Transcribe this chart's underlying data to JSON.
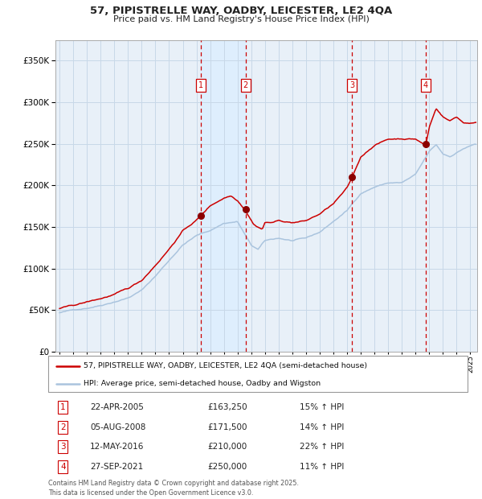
{
  "title_line1": "57, PIPISTRELLE WAY, OADBY, LEICESTER, LE2 4QA",
  "title_line2": "Price paid vs. HM Land Registry's House Price Index (HPI)",
  "legend_line1": "57, PIPISTRELLE WAY, OADBY, LEICESTER, LE2 4QA (semi-detached house)",
  "legend_line2": "HPI: Average price, semi-detached house, Oadby and Wigston",
  "footer": "Contains HM Land Registry data © Crown copyright and database right 2025.\nThis data is licensed under the Open Government Licence v3.0.",
  "transactions": [
    {
      "num": 1,
      "date": "22-APR-2005",
      "date_x": 2005.31,
      "price": 163250,
      "pct": "15%",
      "dir": "↑"
    },
    {
      "num": 2,
      "date": "05-AUG-2008",
      "date_x": 2008.59,
      "price": 171500,
      "pct": "14%",
      "dir": "↑"
    },
    {
      "num": 3,
      "date": "12-MAY-2016",
      "date_x": 2016.36,
      "price": 210000,
      "pct": "22%",
      "dir": "↑"
    },
    {
      "num": 4,
      "date": "27-SEP-2021",
      "date_x": 2021.74,
      "price": 250000,
      "pct": "11%",
      "dir": "↑"
    }
  ],
  "hpi_waypoints_t": [
    1995.0,
    1996.0,
    1997.0,
    1998.0,
    1999.0,
    2000.0,
    2001.0,
    2002.0,
    2003.0,
    2004.0,
    2005.0,
    2006.0,
    2007.0,
    2008.0,
    2009.0,
    2009.5,
    2010.0,
    2011.0,
    2012.0,
    2013.0,
    2014.0,
    2015.0,
    2016.0,
    2017.0,
    2018.0,
    2019.0,
    2020.0,
    2021.0,
    2022.0,
    2022.5,
    2023.0,
    2023.5,
    2024.0,
    2024.5,
    2025.3
  ],
  "hpi_waypoints_v": [
    47000,
    50000,
    53000,
    57000,
    62000,
    67000,
    76000,
    93000,
    112000,
    131000,
    142000,
    148000,
    157000,
    159000,
    130000,
    125000,
    135000,
    138000,
    135000,
    137000,
    144000,
    157000,
    170000,
    191000,
    199000,
    204000,
    204000,
    213000,
    240000,
    248000,
    237000,
    234000,
    239000,
    244000,
    249000
  ],
  "prop_waypoints_t": [
    1995.0,
    1996.0,
    1997.0,
    1998.0,
    1999.0,
    2000.0,
    2001.0,
    2002.0,
    2003.0,
    2004.0,
    2005.0,
    2005.31,
    2006.0,
    2007.0,
    2007.5,
    2008.0,
    2008.59,
    2009.2,
    2009.8,
    2010.0,
    2010.5,
    2011.0,
    2012.0,
    2013.0,
    2014.0,
    2015.0,
    2016.0,
    2016.36,
    2017.0,
    2018.0,
    2019.0,
    2020.0,
    2021.0,
    2021.74,
    2022.0,
    2022.5,
    2023.0,
    2023.5,
    2024.0,
    2024.5,
    2025.3
  ],
  "prop_waypoints_v": [
    52000,
    55000,
    59000,
    63000,
    68000,
    74000,
    84000,
    103000,
    123000,
    145000,
    158000,
    163250,
    175000,
    185000,
    188000,
    183000,
    171500,
    155000,
    150000,
    158000,
    158000,
    160000,
    158000,
    160000,
    168000,
    180000,
    198000,
    210000,
    235000,
    250000,
    257000,
    258000,
    258000,
    250000,
    272000,
    295000,
    285000,
    280000,
    285000,
    278000,
    278000
  ],
  "ylim": [
    0,
    375000
  ],
  "xlim_start": 1994.7,
  "xlim_end": 2025.5,
  "hpi_color": "#aac4de",
  "price_color": "#cc0000",
  "marker_color": "#8b0000",
  "shade_color": "#ddeeff",
  "grid_color": "#c8d8e8",
  "dashed_color": "#cc0000",
  "plot_bg": "#e8f0f8",
  "noise_seed": 42
}
